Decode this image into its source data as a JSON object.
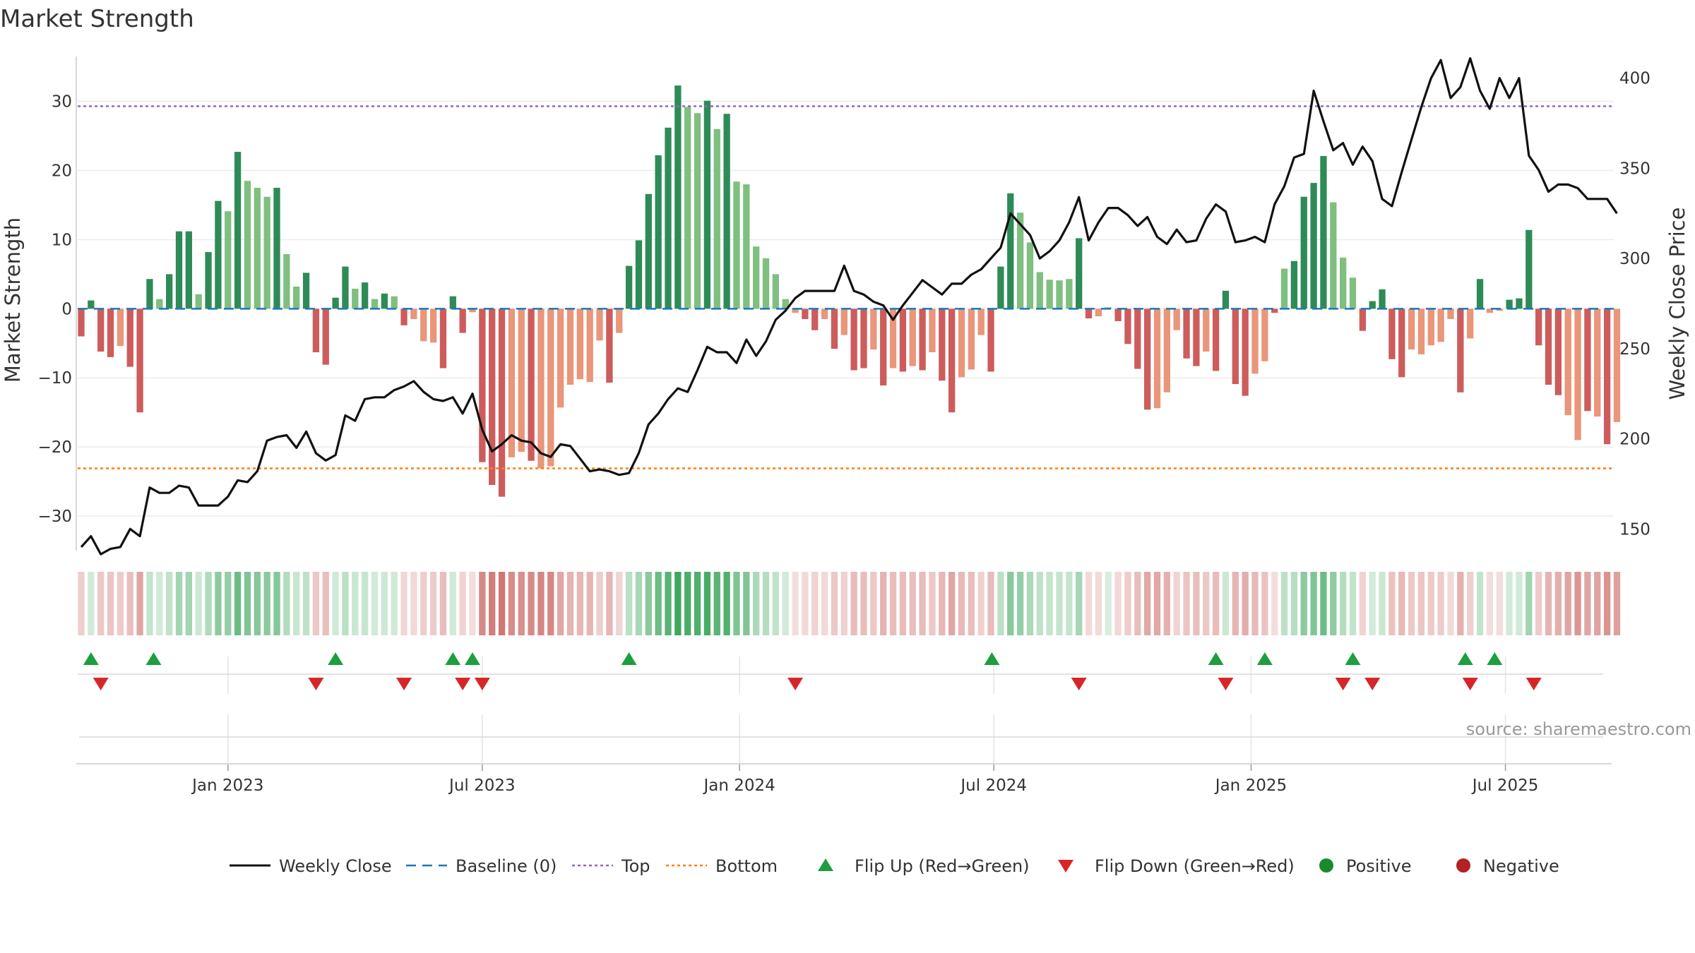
{
  "chart_data": {
    "type": "bar+line",
    "title": "Market Strength",
    "ylabel_left": "Market Strength",
    "ylabel_right": "Weekly Close Price",
    "ylim_left": [
      -35,
      36.5
    ],
    "ylim_right": [
      138,
      412
    ],
    "yticks_left": [
      30,
      20,
      10,
      0,
      -10,
      -20,
      -30
    ],
    "yticks_left_labels": [
      "30",
      "20",
      "10",
      "0",
      "−10",
      "−20",
      "−30"
    ],
    "yticks_right": [
      400,
      350,
      300,
      250,
      200,
      150
    ],
    "yticks_right_labels": [
      "400",
      "350",
      "300",
      "250",
      "200",
      "150"
    ],
    "x_tick_labels": [
      "Jan 2023",
      "Jul 2023",
      "Jan 2024",
      "Jul 2024",
      "Jan 2025",
      "Jul 2025"
    ],
    "x_tick_weeks": [
      15,
      41,
      67.3,
      93.3,
      119.6,
      145.6
    ],
    "top_level": 29.3,
    "bottom_level": -23.1,
    "baseline": 0,
    "source": "source: sharemaestro.com",
    "colors": {
      "pos_strong": "#2e8b57",
      "pos_weak": "#7fbf7f",
      "neg_strong": "#cd5c5c",
      "neg_weak": "#e9967a",
      "line": "#111111",
      "baseline": "#1f77b4",
      "top": "#9467bd",
      "bottom": "#ff7f0e",
      "flip_up": "#1e9e3e",
      "flip_down": "#d62728",
      "positive": "#1a8a2a",
      "negative": "#b22222"
    },
    "strength": [
      -4,
      1.2,
      -6.2,
      -7,
      -5.4,
      -8.4,
      -15,
      4.3,
      1.4,
      5,
      11.2,
      11.2,
      2.1,
      8.2,
      15.6,
      14.1,
      22.7,
      18.5,
      17.5,
      16.2,
      17.5,
      7.9,
      3.2,
      5.2,
      -6.3,
      -8.1,
      1.6,
      6.1,
      2.9,
      3.8,
      1.4,
      2.2,
      1.8,
      -2.4,
      -1.5,
      -4.7,
      -4.9,
      -8.6,
      1.8,
      -3.5,
      -0.5,
      -22.2,
      -25.5,
      -27.2,
      -21.5,
      -20.7,
      -22,
      -23.1,
      -22.8,
      -14.3,
      -11,
      -10.2,
      -10.6,
      -4.6,
      -10.7,
      -3.5,
      6.2,
      9.9,
      16.6,
      22.2,
      26.2,
      32.3,
      29.2,
      28.3,
      30.1,
      26,
      28.2,
      18.4,
      18,
      9,
      7.3,
      5,
      1.4,
      -0.6,
      -1.5,
      -3.1,
      -1.5,
      -5.8,
      -3.8,
      -8.9,
      -8.6,
      -5.9,
      -11.1,
      -8.6,
      -9.1,
      -8.3,
      -8.9,
      -6.3,
      -10.4,
      -15,
      -9.9,
      -8.8,
      -3.8,
      -9.1,
      6.1,
      16.7,
      13.9,
      9.6,
      5.3,
      4.2,
      4.1,
      4.3,
      10.2,
      -1.4,
      -1.1,
      0.2,
      -1.8,
      -5.1,
      -8.7,
      -14.6,
      -14.4,
      -12.1,
      -3.1,
      -7.2,
      -8.3,
      -6.2,
      -9,
      2.6,
      -10.9,
      -12.6,
      -9.4,
      -7.6,
      -0.6,
      5.8,
      6.9,
      16.2,
      18.2,
      22.1,
      15.4,
      7.4,
      4.5,
      -3.2,
      1.1,
      2.8,
      -7.3,
      -9.9,
      -5.9,
      -6.6,
      -5.3,
      -4.8,
      -1.5,
      -12.1,
      -4.3,
      4.3,
      -0.6,
      -0.3,
      1.3,
      1.5,
      11.4,
      -5.3,
      -11,
      -12.5,
      -15.4,
      -19,
      -14.8,
      -15.6,
      -19.6,
      -16.4
    ],
    "strength_colors": [
      "s",
      "s",
      "s",
      "s",
      "w",
      "s",
      "s",
      "s",
      "w",
      "s",
      "s",
      "s",
      "w",
      "s",
      "s",
      "w",
      "s",
      "w",
      "w",
      "w",
      "s",
      "w",
      "w",
      "s",
      "s",
      "s",
      "s",
      "s",
      "w",
      "s",
      "w",
      "s",
      "w",
      "s",
      "w",
      "w",
      "w",
      "s",
      "s",
      "s",
      "w",
      "s",
      "s",
      "s",
      "w",
      "w",
      "s",
      "w",
      "w",
      "w",
      "w",
      "w",
      "w",
      "w",
      "s",
      "w",
      "s",
      "s",
      "s",
      "s",
      "s",
      "s",
      "w",
      "w",
      "s",
      "w",
      "s",
      "w",
      "w",
      "w",
      "w",
      "w",
      "w",
      "w",
      "s",
      "s",
      "w",
      "s",
      "w",
      "s",
      "s",
      "w",
      "s",
      "w",
      "s",
      "w",
      "s",
      "w",
      "s",
      "s",
      "w",
      "w",
      "w",
      "s",
      "s",
      "s",
      "w",
      "w",
      "w",
      "w",
      "w",
      "w",
      "s",
      "s",
      "w",
      "w",
      "s",
      "s",
      "s",
      "s",
      "w",
      "w",
      "w",
      "s",
      "s",
      "w",
      "s",
      "s",
      "s",
      "s",
      "w",
      "w",
      "s",
      "w",
      "s",
      "s",
      "s",
      "s",
      "w",
      "w",
      "w",
      "s",
      "s",
      "s",
      "s",
      "s",
      "w",
      "w",
      "w",
      "w",
      "w",
      "s",
      "w",
      "s",
      "w",
      "w",
      "s",
      "s",
      "s",
      "s",
      "s",
      "s",
      "w",
      "w",
      "s",
      "w",
      "s",
      "w"
    ],
    "weekly_close": [
      140,
      146,
      136,
      139,
      140,
      150,
      146,
      173,
      170,
      170,
      174,
      173,
      163,
      163,
      163,
      168,
      177,
      176,
      182,
      199,
      201,
      202,
      195,
      204,
      192,
      188,
      191,
      213,
      210,
      222,
      223,
      223,
      227,
      229,
      232,
      226,
      222,
      221,
      223,
      214,
      225,
      205,
      193,
      197,
      202,
      199,
      198,
      192,
      190,
      197,
      196,
      189,
      182,
      183,
      182,
      180,
      181,
      192,
      208,
      214,
      222,
      228,
      226,
      238,
      251,
      248,
      248,
      242,
      255,
      246,
      254,
      266,
      271,
      278,
      282,
      282,
      282,
      282,
      296,
      282,
      280,
      276,
      274,
      266,
      274,
      281,
      288,
      284,
      280,
      286,
      286,
      291,
      294,
      300,
      306,
      325,
      319,
      313,
      300,
      304,
      310,
      320,
      334,
      310,
      320,
      328,
      328,
      324,
      318,
      323,
      312,
      308,
      316,
      309,
      310,
      322,
      330,
      326,
      309,
      310,
      312,
      309,
      330,
      340,
      356,
      358,
      393,
      376,
      360,
      364,
      352,
      362,
      354,
      333,
      329,
      348,
      366,
      384,
      400,
      410,
      389,
      395,
      411,
      393,
      383,
      400,
      389,
      400,
      357,
      349,
      337,
      341,
      341,
      339,
      333,
      333,
      333,
      325
    ],
    "flip_up_weeks": [
      1,
      7.4,
      26,
      38,
      40,
      56,
      93.1,
      116,
      121,
      130,
      141.5,
      144.5
    ],
    "flip_down_weeks": [
      2,
      24,
      33,
      39,
      41,
      73,
      102,
      117,
      129,
      132,
      142,
      148.5
    ],
    "legend": [
      {
        "key": "line",
        "label": "Weekly Close"
      },
      {
        "key": "baseline",
        "label": "Baseline (0)"
      },
      {
        "key": "top",
        "label": "Top"
      },
      {
        "key": "bottom",
        "label": "Bottom"
      },
      {
        "key": "flip_up",
        "label": "Flip Up (Red→Green)"
      },
      {
        "key": "flip_down",
        "label": "Flip Down (Green→Red)"
      },
      {
        "key": "positive",
        "label": "Positive"
      },
      {
        "key": "negative",
        "label": "Negative"
      }
    ]
  }
}
